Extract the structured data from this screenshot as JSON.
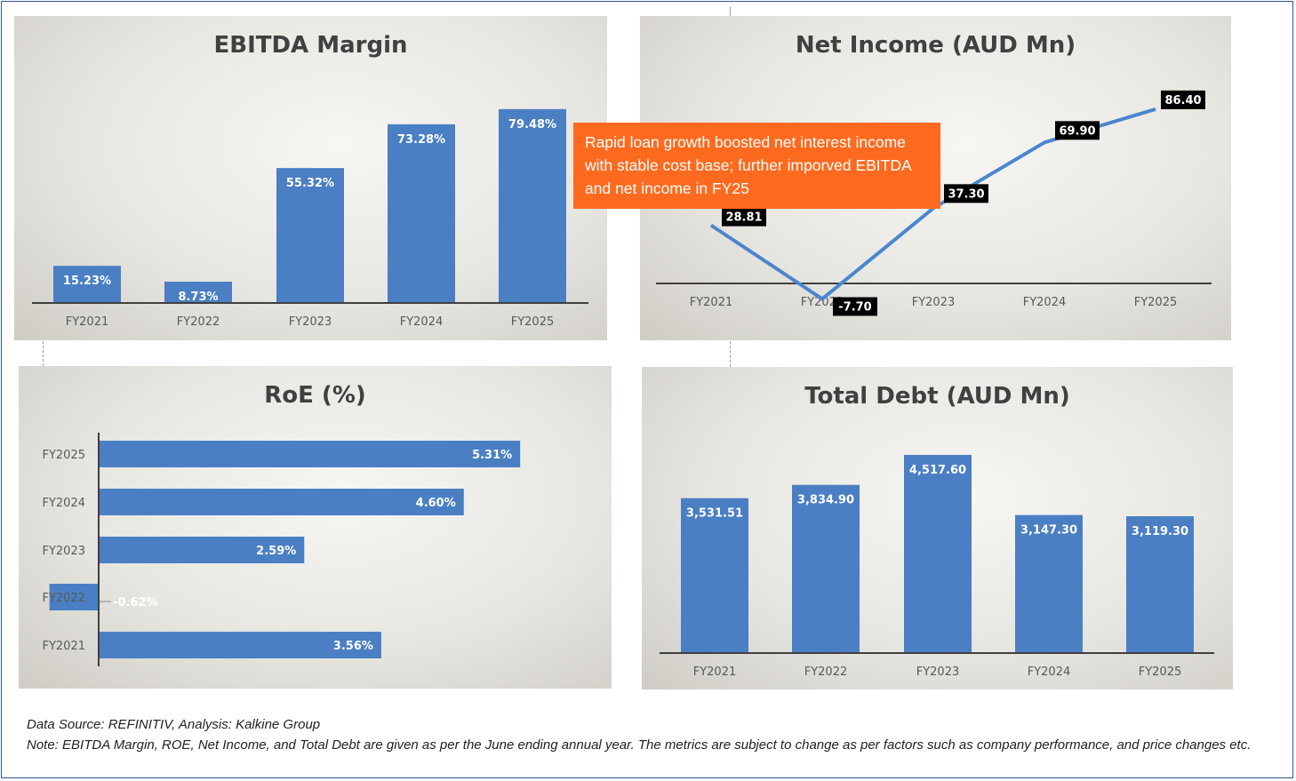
{
  "chart_data": [
    {
      "id": "ebitda",
      "type": "bar",
      "title": "EBITDA Margin",
      "categories": [
        "FY2021",
        "FY2022",
        "FY2023",
        "FY2024",
        "FY2025"
      ],
      "values": [
        15.23,
        8.73,
        55.32,
        73.28,
        79.48
      ],
      "labels": [
        "15.23%",
        "8.73%",
        "55.32%",
        "73.28%",
        "79.48%"
      ],
      "unit": "%",
      "color": "#4a7fc4",
      "grid": false
    },
    {
      "id": "netincome",
      "type": "line",
      "title": "Net Income (AUD Mn)",
      "categories": [
        "FY2021",
        "FY2022",
        "FY2023",
        "FY2024",
        "FY2025"
      ],
      "values": [
        28.81,
        -7.7,
        37.3,
        69.9,
        86.4
      ],
      "labels": [
        "28.81",
        "-7.70",
        "37.30",
        "69.90",
        "86.40"
      ],
      "color": "#4a86cf",
      "grid": false
    },
    {
      "id": "roe",
      "type": "bar",
      "orientation": "horizontal",
      "title": "RoE (%)",
      "categories": [
        "FY2025",
        "FY2024",
        "FY2023",
        "FY2022",
        "FY2021"
      ],
      "values": [
        5.31,
        4.6,
        2.59,
        -0.62,
        3.56
      ],
      "labels": [
        "5.31%",
        "4.60%",
        "2.59%",
        "-0.62%",
        "3.56%"
      ],
      "color": "#4a7fc4",
      "grid": false
    },
    {
      "id": "debt",
      "type": "bar",
      "title": "Total Debt (AUD Mn)",
      "categories": [
        "FY2021",
        "FY2022",
        "FY2023",
        "FY2024",
        "FY2025"
      ],
      "values": [
        3531.51,
        3834.9,
        4517.6,
        3147.3,
        3119.3
      ],
      "labels": [
        "3,531.51",
        "3,834.90",
        "4,517.60",
        "3,147.30",
        "3,119.30"
      ],
      "color": "#4a7fc4",
      "grid": false
    }
  ],
  "annotation": "Rapid loan growth boosted net interest income with stable cost base; further imporved EBITDA and net income in FY25",
  "footer": {
    "source": "Data Source: REFINITIV, Analysis: Kalkine Group",
    "note": "Note: EBITDA Margin, ROE, Net Income, and Total Debt are given as per the June ending annual year. The metrics are subject to change as per factors such as company performance, and price changes etc."
  },
  "colors": {
    "annotation_bg": "#ff6a1f",
    "bar": "#4a7fc4",
    "frame": "#2f5597"
  }
}
